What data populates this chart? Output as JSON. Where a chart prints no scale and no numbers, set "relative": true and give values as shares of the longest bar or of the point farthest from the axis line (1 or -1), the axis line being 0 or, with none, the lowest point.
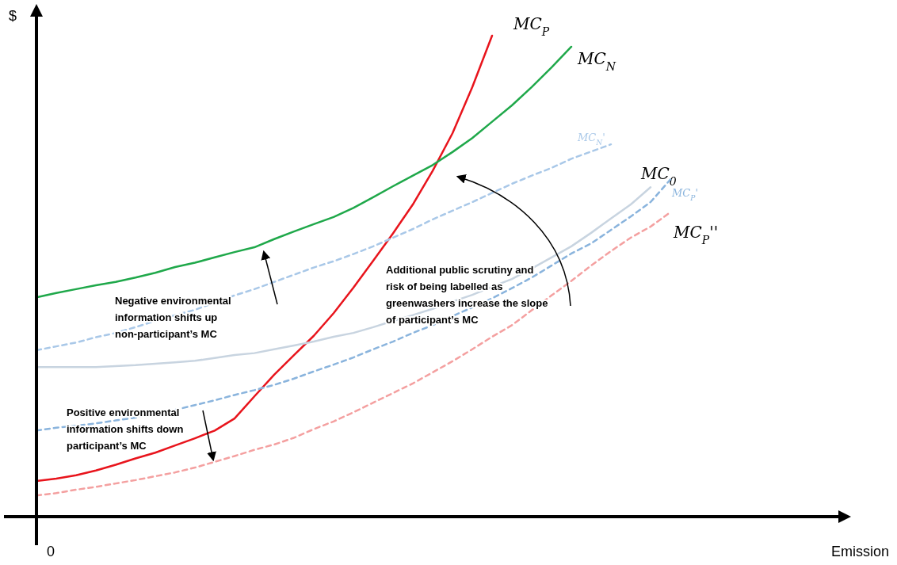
{
  "chart_data": {
    "type": "line",
    "relative": true,
    "ylabel": "$",
    "marker": "none",
    "categories": [
      null,
      null,
      null,
      null,
      null,
      null,
      null,
      null,
      null,
      null,
      null,
      null,
      null,
      null,
      null,
      null,
      null,
      null,
      null,
      null,
      null,
      null,
      null,
      null,
      null,
      null,
      null,
      null,
      null,
      null,
      null,
      null,
      null
    ],
    "annotations": [
      "Negative environmental information shifts up non-participant’s MC",
      "Additional public scrutiny and risk of being labelled as greenwashers increase the slope of participant’s MC",
      "Positive environmental information shifts down participant’s MC",
      "0",
      "Emission"
    ],
    "series": [
      {
        "name": "MC$_{P}$",
        "color": "#e8141c",
        "line_style": "solid",
        "values": [
          0.074,
          0.079,
          0.086,
          0.096,
          0.108,
          0.121,
          0.133,
          0.148,
          0.163,
          0.179,
          0.204,
          0.25,
          0.295,
          0.336,
          0.376,
          0.423,
          0.476,
          0.532,
          0.589,
          0.649,
          0.719,
          0.797,
          0.893,
          1,
          null,
          null,
          null,
          null,
          null,
          null,
          null,
          null,
          null
        ]
      },
      {
        "name": "MC$_{N}$",
        "color": "#1fa84a",
        "line_style": "solid",
        "values": [
          0.456,
          0.465,
          0.473,
          0.481,
          0.488,
          0.497,
          0.507,
          0.519,
          0.528,
          0.539,
          0.55,
          0.56,
          0.577,
          0.593,
          0.608,
          0.623,
          0.642,
          0.664,
          0.687,
          0.709,
          0.731,
          0.758,
          0.787,
          0.821,
          0.855,
          0.893,
          0.934,
          0.977,
          null,
          null,
          null,
          null,
          null
        ]
      },
      {
        "name": "MC$_{N}$'",
        "color": "#a9c8e8",
        "line_style": "dashed",
        "values": [
          0.346,
          0.354,
          0.362,
          0.373,
          0.382,
          0.394,
          0.407,
          0.419,
          0.43,
          0.445,
          0.46,
          0.473,
          0.488,
          0.503,
          0.518,
          0.531,
          0.546,
          0.562,
          0.58,
          0.598,
          0.618,
          0.636,
          0.654,
          0.673,
          0.692,
          0.709,
          0.725,
          0.744,
          0.759,
          0.774,
          null,
          null,
          null
        ]
      },
      {
        "name": "MC$_{0}$",
        "color": "#c8d4e0",
        "line_style": "solid",
        "values": [
          0.311,
          0.311,
          0.311,
          0.311,
          0.313,
          0.315,
          0.318,
          0.321,
          0.324,
          0.33,
          0.336,
          0.34,
          0.348,
          0.356,
          0.364,
          0.374,
          0.382,
          0.394,
          0.407,
          0.419,
          0.432,
          0.447,
          0.461,
          0.478,
          0.494,
          0.516,
          0.539,
          0.562,
          0.59,
          0.62,
          0.649,
          0.685,
          null
        ]
      },
      {
        "name": "MC$_{P}$'",
        "color": "#8ab4dd",
        "line_style": "dashed",
        "values": [
          0.179,
          0.185,
          0.189,
          0.194,
          0.2,
          0.206,
          0.214,
          0.222,
          0.232,
          0.242,
          0.253,
          0.263,
          0.274,
          0.287,
          0.302,
          0.316,
          0.331,
          0.348,
          0.364,
          0.382,
          0.398,
          0.417,
          0.435,
          0.454,
          0.475,
          0.497,
          0.522,
          0.547,
          0.568,
          0.596,
          0.624,
          0.654,
          0.701
        ]
      },
      {
        "name": "MC$_{P}$''",
        "color": "#f4a0a0",
        "line_style": "dashed",
        "values": [
          0.044,
          0.049,
          0.056,
          0.062,
          0.069,
          0.076,
          0.084,
          0.092,
          0.102,
          0.114,
          0.126,
          0.139,
          0.15,
          0.164,
          0.182,
          0.198,
          0.217,
          0.237,
          0.257,
          0.277,
          0.3,
          0.323,
          0.348,
          0.374,
          0.398,
          0.429,
          0.46,
          0.49,
          0.522,
          0.552,
          0.58,
          0.603,
          0.633
        ]
      }
    ]
  }
}
